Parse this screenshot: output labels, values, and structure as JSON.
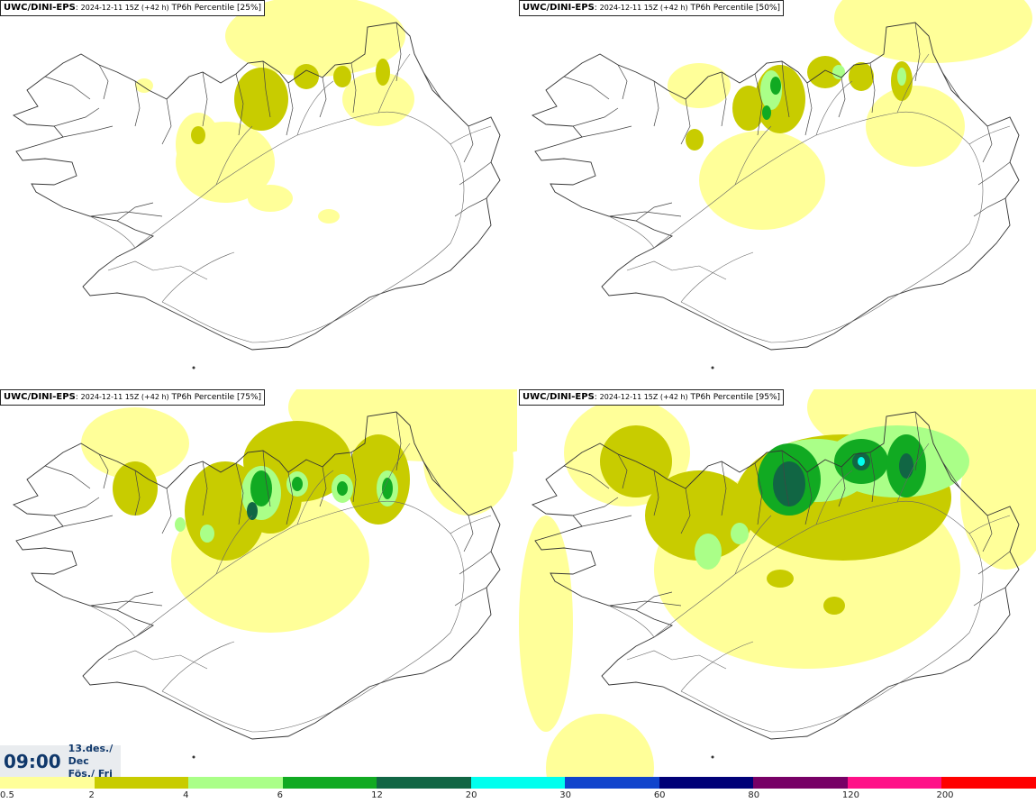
{
  "panels": [
    {
      "model": "UWC/DINI-EPS",
      "run": "2024-12-11 15Z (+42 h)",
      "field": "TP6h Percentile",
      "percentile": "[25%]",
      "intensity": 1
    },
    {
      "model": "UWC/DINI-EPS",
      "run": "2024-12-11 15Z (+42 h)",
      "field": "TP6h Percentile",
      "percentile": "[50%]",
      "intensity": 2
    },
    {
      "model": "UWC/DINI-EPS",
      "run": "2024-12-11 15Z (+42 h)",
      "field": "TP6h Percentile",
      "percentile": "[75%]",
      "intensity": 3
    },
    {
      "model": "UWC/DINI-EPS",
      "run": "2024-12-11 15Z (+42 h)",
      "field": "TP6h Percentile",
      "percentile": "[95%]",
      "intensity": 4
    }
  ],
  "valid_time": {
    "time": "09:00",
    "date": "13.des./ Dec",
    "day": "Fös./ Fri"
  },
  "legend": {
    "labels": [
      "0.5",
      "2",
      "4",
      "6",
      "12",
      "20",
      "30",
      "60",
      "80",
      "120",
      "200"
    ],
    "colors": [
      "#ffff99",
      "#c8cc00",
      "#aaff88",
      "#11aa22",
      "#116644",
      "#00ffee",
      "#1144cc",
      "#000077",
      "#770066",
      "#ff1188",
      "#ff0000"
    ]
  }
}
